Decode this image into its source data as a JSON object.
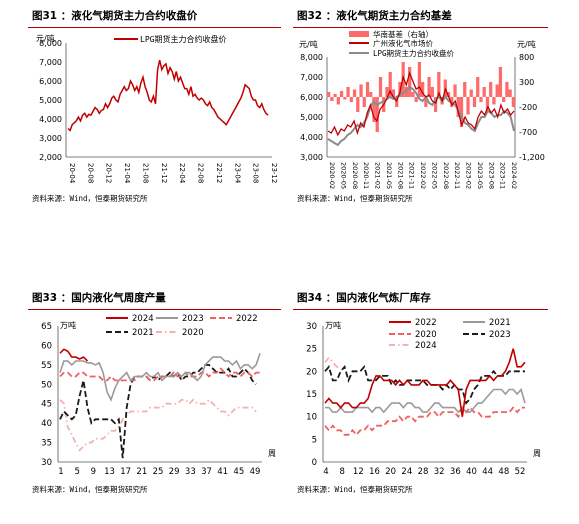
{
  "panels": [
    {
      "title": "图31 ：液化气期货主力合约收盘价",
      "source": "资料来源：Wind，恒泰期货研究所",
      "chart_data": {
        "type": "line",
        "unit_label": "元/吨",
        "ylim": [
          2000,
          8000
        ],
        "yticks": [
          "8,000",
          "7,000",
          "6,000",
          "5,000",
          "4,000",
          "3,000",
          "2,000"
        ],
        "xlabels": [
          "20-04",
          "20-08",
          "20-12",
          "21-04",
          "21-08",
          "21-12",
          "22-04",
          "22-08",
          "22-12",
          "23-04",
          "23-08",
          "23-12"
        ],
        "series": [
          {
            "name": "LPG期货主力合约收盘价",
            "color": "#c00000",
            "values": [
              3500,
              3400,
              3700,
              3800,
              3900,
              4100,
              3900,
              4200,
              4300,
              4100,
              4250,
              4200,
              4400,
              4600,
              4500,
              4300,
              4450,
              4500,
              4800,
              4600,
              4800,
              5100,
              5200,
              5000,
              4900,
              5300,
              5500,
              5700,
              5500,
              5600,
              6000,
              5800,
              5500,
              5700,
              5400,
              5900,
              6200,
              5700,
              5400,
              5000,
              4900,
              5200,
              4800,
              6600,
              7100,
              6600,
              6800,
              6900,
              6400,
              6700,
              6500,
              6100,
              6500,
              6000,
              6200,
              5900,
              5600,
              5600,
              5300,
              5700,
              5200,
              5300,
              5100,
              5000,
              5100,
              5000,
              4800,
              4700,
              4900,
              4600,
              4500,
              4300,
              4100,
              4000,
              3900,
              3800,
              3700,
              3900,
              4100,
              4300,
              4500,
              4700,
              4900,
              5100,
              5400,
              5800,
              5700,
              5600,
              5200,
              5000,
              5000,
              4700,
              4600,
              4800,
              4500,
              4300,
              4200
            ]
          }
        ]
      }
    },
    {
      "title": "图32 ：液化气期货主力合约基差",
      "source": "资料来源：Wind，恒泰期货研究所",
      "chart_data": {
        "type": "line",
        "unit_label_left": "元/吨",
        "unit_label_right": "元/吨",
        "ylim": [
          3000,
          8000
        ],
        "y2lim": [
          -1200,
          800
        ],
        "yticks": [
          "8,000",
          "7,000",
          "6,000",
          "5,000",
          "4,000",
          "3,000"
        ],
        "y2ticks": [
          "800",
          "300",
          "-200",
          "-700",
          "-1,200"
        ],
        "xlabels": [
          "2020-02",
          "2020-05",
          "2020-08",
          "2020-11",
          "2021-02",
          "2021-05",
          "2021-08",
          "2021-11",
          "2022-02",
          "2022-05",
          "2022-08",
          "2022-11",
          "2023-02",
          "2023-05",
          "2023-08",
          "2023-11",
          "2024-02"
        ],
        "series": [
          {
            "name": "华南基差（右轴）",
            "color": "#ff6b6b",
            "values": [
              100,
              -80,
              60,
              -150,
              120,
              -50,
              200,
              -100,
              150,
              -300,
              250,
              -200,
              300,
              100,
              -500,
              -700,
              400,
              -300,
              200,
              500,
              150,
              -200,
              300,
              700,
              200,
              600,
              100,
              -100,
              700,
              300,
              -200,
              400,
              200,
              -300,
              500,
              -150,
              350,
              100,
              -200,
              250,
              -400,
              -600,
              300,
              -350,
              150,
              -200,
              400,
              -100,
              200,
              -250,
              300,
              -150,
              250,
              600,
              -100,
              300,
              150,
              -200
            ]
          },
          {
            "name": "广州液化气市场价",
            "color": "#c00000",
            "values": [
              4300,
              4200,
              4500,
              4100,
              4400,
              4300,
              4600,
              4500,
              4800,
              4200,
              4700,
              4500,
              5200,
              5600,
              5000,
              4800,
              5400,
              5600,
              5900,
              6300,
              6000,
              5800,
              6200,
              7000,
              6600,
              7200,
              6800,
              6400,
              6500,
              6200,
              6000,
              6100,
              5800,
              5700,
              6200,
              5800,
              6400,
              6000,
              5600,
              5800,
              5200,
              4600,
              5000,
              4700,
              4600,
              4400,
              5000,
              5300,
              5100,
              5500,
              5200,
              5400,
              5000,
              5600,
              5200,
              5400,
              5100,
              5300
            ]
          },
          {
            "name": "LPG期货主力合约收盘价",
            "color": "#8c8c8c",
            "values": [
              3900,
              3800,
              3700,
              3600,
              3800,
              3900,
              4100,
              4200,
              4400,
              4600,
              4500,
              4700,
              5000,
              5500,
              5800,
              5600,
              5700,
              5800,
              5900,
              6000,
              5900,
              6000,
              6100,
              6200,
              6300,
              6500,
              6400,
              6200,
              5900,
              5800,
              6000,
              5700,
              5600,
              5900,
              6000,
              5800,
              6000,
              5800,
              5700,
              5600,
              5300,
              5000,
              4700,
              4600,
              4400,
              4300,
              4700,
              5000,
              5000,
              5300,
              5200,
              5000,
              5100,
              5100,
              5300,
              5200,
              5000,
              4300
            ]
          }
        ]
      }
    },
    {
      "title": "图33 ：国内液化气周度产量",
      "source": "资料来源：Wind，恒泰期货研究所",
      "chart_data": {
        "type": "line",
        "unit_label": "万吨",
        "x_unit": "周",
        "ylim": [
          30,
          65
        ],
        "yticks": [
          "65",
          "60",
          "55",
          "50",
          "45",
          "40",
          "35",
          "30"
        ],
        "xlabels": [
          "1",
          "5",
          "9",
          "13",
          "17",
          "21",
          "25",
          "29",
          "33",
          "37",
          "41",
          "45",
          "49"
        ],
        "series": [
          {
            "name": "2024",
            "color": "#c00000",
            "style": "solid",
            "values": [
              58,
              59,
              58.5,
              57,
              57,
              56.5,
              57,
              56
            ]
          },
          {
            "name": "2023",
            "color": "#9a9a9a",
            "style": "solid",
            "values": [
              53,
              56,
              56,
              55,
              56,
              56,
              56,
              55.5,
              55.5,
              55,
              55.5,
              53,
              48,
              46,
              49,
              51,
              52,
              53,
              51,
              52,
              52,
              52,
              53,
              52,
              52,
              53,
              51,
              52,
              52,
              52,
              53,
              52,
              53,
              53,
              52,
              51,
              52,
              55,
              56,
              57,
              57,
              57,
              56,
              56,
              55,
              56,
              54,
              55,
              55,
              54,
              55,
              58
            ]
          },
          {
            "name": "2022",
            "color": "#f06060",
            "style": "dashed",
            "values": [
              52,
              53,
              53,
              52,
              52,
              53,
              53,
              52,
              52,
              52,
              52,
              51,
              51,
              52,
              51,
              51,
              51,
              51,
              51,
              51,
              52,
              52,
              52,
              51,
              51,
              52,
              52,
              52,
              52,
              53,
              52,
              52,
              53,
              52,
              52,
              52,
              53,
              53,
              52,
              53,
              53,
              54,
              53,
              52,
              53,
              53,
              52,
              53,
              53,
              52,
              53,
              53
            ]
          },
          {
            "name": "2021",
            "color": "#1a1a1a",
            "style": "dashed",
            "values": [
              41,
              43,
              42,
              41,
              42,
              47,
              51,
              44,
              40,
              41,
              41,
              41,
              41,
              41,
              40,
              41,
              31,
              44,
              50,
              52,
              52,
              52,
              52,
              51,
              52,
              51,
              52,
              52,
              53,
              52,
              53,
              51,
              52,
              52,
              53,
              53,
              54,
              55,
              55,
              54,
              53,
              53,
              53,
              54,
              52,
              52,
              53,
              54,
              53,
              51,
              50
            ]
          },
          {
            "name": "2020",
            "color": "#f6b0b0",
            "style": "dashdot",
            "values": [
              46,
              45,
              39,
              37,
              35,
              33,
              34,
              35,
              35,
              36,
              36,
              36,
              37,
              38,
              38,
              39,
              41,
              42,
              43,
              43,
              43,
              43,
              43,
              44,
              44,
              44,
              44,
              45,
              45,
              45,
              45,
              46,
              46,
              45,
              46,
              45,
              45,
              45,
              46,
              45,
              44,
              43,
              43,
              42,
              43,
              44,
              44,
              44,
              44,
              44,
              43
            ]
          }
        ]
      }
    },
    {
      "title": "图34 ：国内液化气炼厂库存",
      "source": "资料来源：Wind，恒泰期货研究所",
      "chart_data": {
        "type": "line",
        "unit_label": "万吨",
        "x_unit": "周",
        "ylim": [
          0,
          30
        ],
        "yticks": [
          "30",
          "25",
          "20",
          "15",
          "10",
          "5",
          "0"
        ],
        "xlabels": [
          "4",
          "8",
          "12",
          "16",
          "20",
          "24",
          "28",
          "32",
          "36",
          "40",
          "44",
          "48",
          "52"
        ],
        "series": [
          {
            "name": "2022",
            "color": "#c00000",
            "style": "solid",
            "values": [
              13,
              14,
              13,
              13,
              12,
              13,
              13,
              12,
              12,
              13,
              13,
              14,
              17,
              19,
              19,
              18,
              18,
              18,
              17,
              18,
              17,
              18,
              17,
              17,
              17,
              18,
              18,
              17,
              17,
              17,
              17,
              17,
              18,
              17,
              16,
              10,
              16,
              18,
              18,
              18,
              18,
              18,
              19,
              18,
              19,
              19,
              20,
              22,
              25,
              21,
              21,
              22
            ]
          },
          {
            "name": "2021",
            "color": "#9a9a9a",
            "style": "solid",
            "values": [
              12,
              12,
              11,
              11,
              12,
              11,
              11,
              11,
              12,
              12,
              12,
              12,
              11,
              12,
              12,
              11,
              12,
              13,
              13,
              13,
              12,
              13,
              13,
              12,
              12,
              11,
              11,
              12,
              13,
              13,
              12,
              12,
              12,
              12,
              11,
              12,
              11,
              11,
              12,
              13,
              13,
              14,
              15,
              16,
              16,
              16,
              15,
              16,
              16,
              15,
              16,
              13
            ]
          },
          {
            "name": "2020",
            "color": "#f06060",
            "style": "dashed",
            "values": [
              8,
              7,
              8,
              7,
              7,
              6,
              6,
              7,
              6,
              7,
              7,
              8,
              7,
              8,
              8,
              8,
              9,
              9,
              9,
              10,
              9,
              10,
              10,
              9,
              10,
              10,
              10,
              11,
              11,
              10,
              11,
              11,
              11,
              11,
              10,
              12,
              11,
              12,
              11,
              11,
              10,
              10,
              10,
              11,
              11,
              11,
              11,
              11,
              12,
              11,
              12,
              12
            ]
          },
          {
            "name": "2023",
            "color": "#1a1a1a",
            "style": "dashed",
            "values": [
              20,
              21,
              18,
              18,
              20,
              21,
              18,
              20,
              20,
              20,
              21,
              18,
              18,
              18,
              19,
              19,
              19,
              17,
              18,
              17,
              17,
              18,
              18,
              18,
              18,
              18,
              17,
              17,
              17,
              17,
              16,
              17,
              16,
              17,
              16,
              16,
              13,
              14,
              16,
              17,
              19,
              19,
              19,
              20,
              19,
              19,
              19,
              20,
              20,
              20,
              20,
              20
            ]
          },
          {
            "name": "2024",
            "color": "#f6b0b0",
            "style": "dashdot",
            "values": [
              22,
              23,
              22,
              21,
              21
            ]
          }
        ]
      }
    }
  ]
}
